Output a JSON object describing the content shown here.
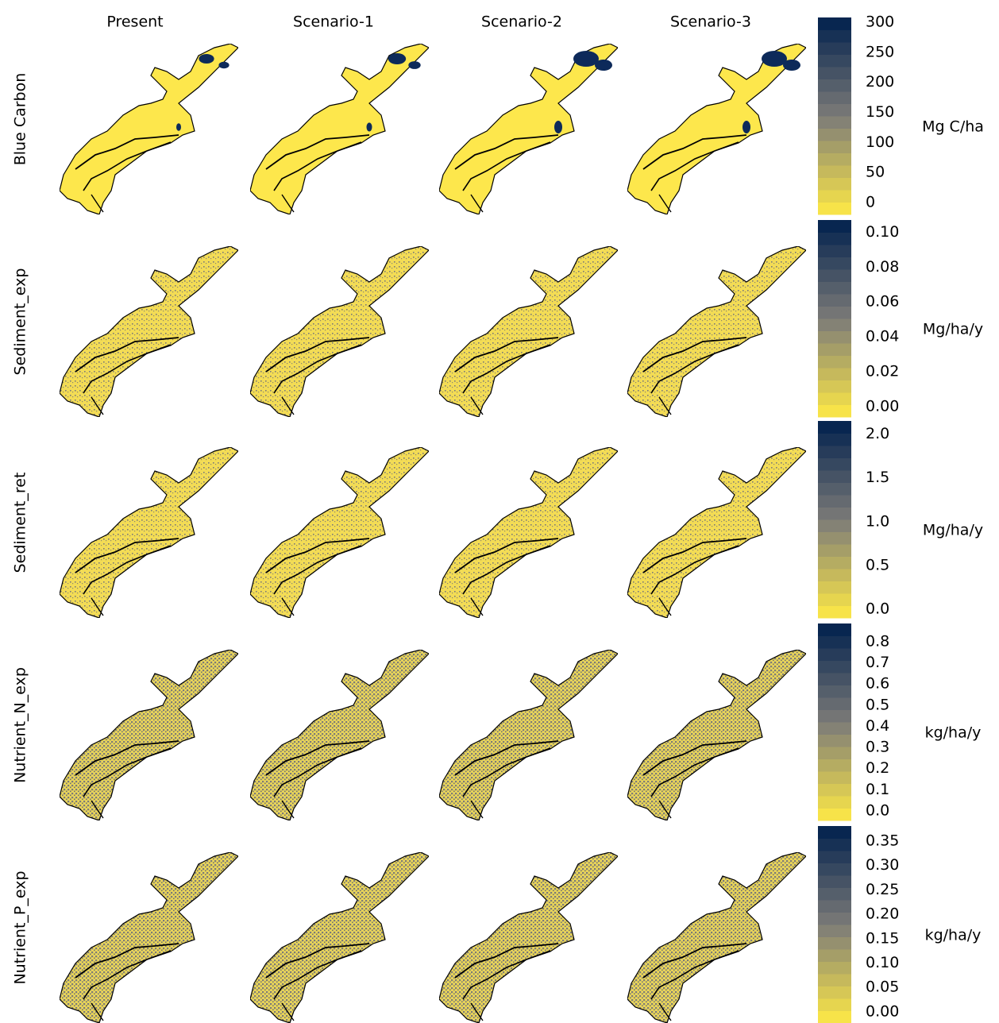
{
  "columns": [
    "Present",
    "Scenario-1",
    "Scenario-2",
    "Scenario-3"
  ],
  "colorbar_colors": [
    "#ffea46",
    "#7c7b78",
    "#00204d"
  ],
  "rows": [
    {
      "label": "Blue Carbon",
      "unit": "Mg C/ha",
      "lim": [
        -20,
        308
      ],
      "ticks": [
        0,
        50,
        100,
        150,
        200,
        250,
        300
      ]
    },
    {
      "label": "Sediment_exp",
      "unit": "Mg/ha/y",
      "lim": [
        -0.006,
        0.107
      ],
      "ticks": [
        {
          "value": 0,
          "label": "0.00"
        },
        {
          "value": 0.02,
          "label": "0.02"
        },
        {
          "value": 0.04,
          "label": "0.04"
        },
        {
          "value": 0.06,
          "label": "0.06"
        },
        {
          "value": 0.08,
          "label": "0.08"
        },
        {
          "value": 0.1,
          "label": "0.10"
        }
      ]
    },
    {
      "label": "Sediment_ret",
      "unit": "Mg/ha/y",
      "lim": [
        -0.1,
        2.15
      ],
      "ticks": [
        {
          "value": 0,
          "label": "0.0"
        },
        0.5,
        {
          "value": 1,
          "label": "1.0"
        },
        1.5,
        {
          "value": 2,
          "label": "2.0"
        }
      ]
    },
    {
      "label": "Nutrient_N_exp",
      "unit": "kg/ha/y",
      "lim": [
        -0.045,
        0.886
      ],
      "ticks": [
        {
          "value": 0,
          "label": "0.0"
        },
        0.1,
        0.2,
        0.3,
        0.4,
        0.5,
        0.6,
        0.7,
        0.8
      ]
    },
    {
      "label": "Nutrient_P_exp",
      "unit": "kg/ha/y",
      "lim": [
        -0.023,
        0.381
      ],
      "ticks": [
        {
          "value": 0,
          "label": "0.00"
        },
        {
          "value": 0.05,
          "label": "0.05"
        },
        {
          "value": 0.1,
          "label": "0.10"
        },
        0.15,
        {
          "value": 0.2,
          "label": "0.20"
        },
        0.25,
        {
          "value": 0.3,
          "label": "0.30"
        },
        0.35
      ]
    }
  ]
}
